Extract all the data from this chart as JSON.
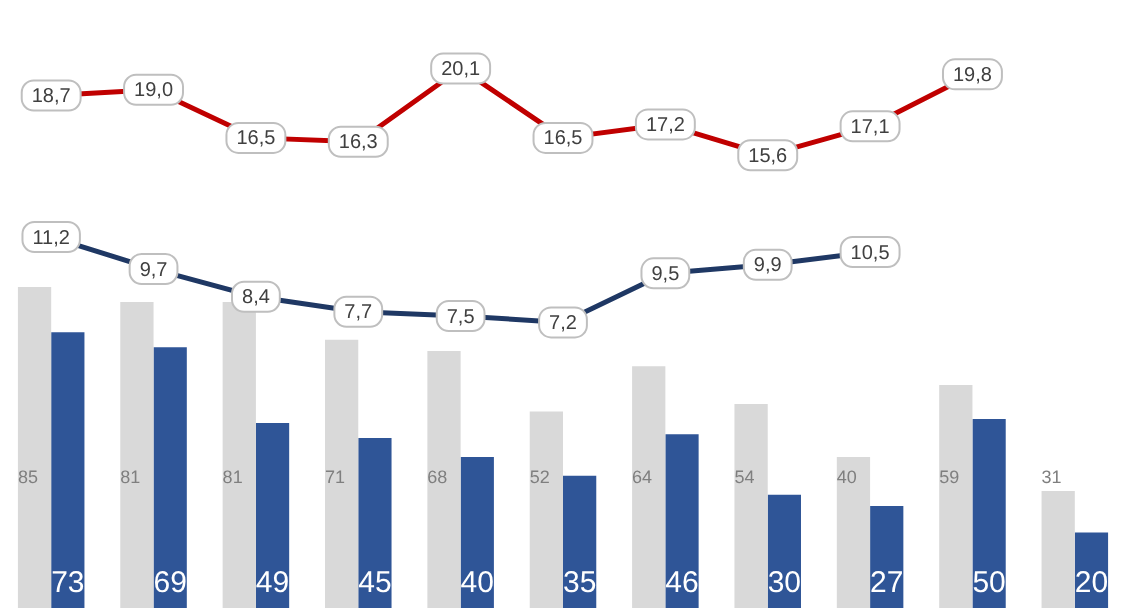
{
  "chart_data": [
    {
      "type": "line",
      "categories": [
        null,
        null,
        null,
        null,
        null,
        null,
        null,
        null,
        null,
        null,
        null
      ],
      "series": [
        {
          "color": "#c00000",
          "values": [
            18.7,
            19.0,
            16.5,
            16.3,
            20.1,
            16.5,
            17.2,
            15.6,
            17.1,
            19.8,
            null
          ],
          "value_labels": [
            "18,7",
            "19,0",
            "16,5",
            "16,3",
            "20,1",
            "16,5",
            "17,2",
            "15,6",
            "17,1",
            "19,8",
            null
          ]
        }
      ],
      "grid": false,
      "legend": false,
      "tick_labels": false,
      "marker": "square"
    },
    {
      "type": "line",
      "categories": [
        null,
        null,
        null,
        null,
        null,
        null,
        null,
        null,
        null,
        null,
        null
      ],
      "series": [
        {
          "color": "#1f3864",
          "values": [
            11.2,
            9.7,
            8.4,
            7.7,
            7.5,
            7.2,
            9.5,
            9.9,
            10.5,
            null,
            null
          ],
          "value_labels": [
            "11,2",
            "9,7",
            "8,4",
            "7,7",
            "7,5",
            "7,2",
            "9,5",
            "9,9",
            "10,5",
            null,
            null
          ]
        }
      ],
      "grid": false,
      "legend": false,
      "tick_labels": false,
      "marker": "square"
    },
    {
      "type": "bar",
      "categories": [
        null,
        null,
        null,
        null,
        null,
        null,
        null,
        null,
        null,
        null,
        null
      ],
      "series": [
        {
          "color": "#d9d9d9",
          "values": [
            85,
            81,
            81,
            71,
            68,
            52,
            64,
            54,
            40,
            59,
            31
          ]
        },
        {
          "color": "#2f5597",
          "values": [
            73,
            69,
            49,
            45,
            40,
            35,
            46,
            30,
            27,
            50,
            20
          ]
        }
      ],
      "data_labels": true,
      "grid": false,
      "legend": false,
      "tick_labels": false
    }
  ]
}
